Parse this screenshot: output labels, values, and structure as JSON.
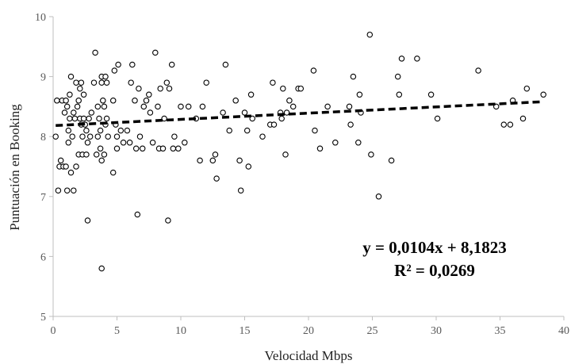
{
  "chart_data": {
    "type": "scatter",
    "title": "",
    "xlabel": "Velocidad Mbps",
    "ylabel": "Puntuación en Booking",
    "xlim": [
      0,
      40
    ],
    "ylim": [
      5,
      10
    ],
    "x_ticks": [
      "0",
      "5",
      "10",
      "15",
      "20",
      "25",
      "30",
      "35",
      "40"
    ],
    "y_ticks": [
      "5",
      "6",
      "7",
      "8",
      "9",
      "10"
    ],
    "grid": false,
    "marker": "open-circle",
    "trendline": {
      "type": "linear",
      "slope": 0.0104,
      "intercept": 8.1823,
      "style": "dashed",
      "equation_label": "y = 0,0104x + 8,1823",
      "r2_label": "R² = 0,0269"
    },
    "points": [
      [
        0.2,
        8.0
      ],
      [
        0.3,
        8.6
      ],
      [
        0.4,
        7.1
      ],
      [
        0.5,
        7.5
      ],
      [
        0.6,
        7.6
      ],
      [
        0.7,
        8.6
      ],
      [
        0.8,
        7.5
      ],
      [
        0.9,
        8.4
      ],
      [
        1.0,
        8.6
      ],
      [
        1.0,
        7.5
      ],
      [
        1.1,
        8.5
      ],
      [
        1.1,
        7.1
      ],
      [
        1.2,
        8.1
      ],
      [
        1.2,
        7.9
      ],
      [
        1.3,
        8.7
      ],
      [
        1.3,
        8.3
      ],
      [
        1.4,
        7.4
      ],
      [
        1.4,
        9.0
      ],
      [
        1.5,
        8.0
      ],
      [
        1.6,
        8.4
      ],
      [
        1.6,
        7.1
      ],
      [
        1.7,
        8.3
      ],
      [
        1.8,
        7.5
      ],
      [
        1.8,
        8.9
      ],
      [
        1.9,
        8.5
      ],
      [
        2.0,
        8.6
      ],
      [
        2.0,
        7.7
      ],
      [
        2.1,
        8.8
      ],
      [
        2.1,
        8.3
      ],
      [
        2.2,
        8.2
      ],
      [
        2.2,
        8.9
      ],
      [
        2.3,
        8.0
      ],
      [
        2.3,
        7.7
      ],
      [
        2.4,
        8.7
      ],
      [
        2.4,
        8.3
      ],
      [
        2.5,
        8.2
      ],
      [
        2.6,
        8.1
      ],
      [
        2.6,
        7.7
      ],
      [
        2.7,
        7.9
      ],
      [
        2.7,
        6.6
      ],
      [
        2.8,
        8.3
      ],
      [
        2.9,
        8.0
      ],
      [
        3.0,
        8.4
      ],
      [
        3.2,
        8.9
      ],
      [
        3.3,
        9.4
      ],
      [
        3.4,
        7.7
      ],
      [
        3.5,
        8.0
      ],
      [
        3.5,
        8.5
      ],
      [
        3.6,
        8.3
      ],
      [
        3.7,
        8.1
      ],
      [
        3.7,
        7.8
      ],
      [
        3.8,
        9.0
      ],
      [
        3.8,
        8.9
      ],
      [
        3.8,
        7.6
      ],
      [
        3.8,
        5.8
      ],
      [
        3.9,
        8.6
      ],
      [
        4.0,
        8.5
      ],
      [
        4.0,
        7.7
      ],
      [
        4.1,
        8.2
      ],
      [
        4.1,
        9.0
      ],
      [
        4.2,
        8.9
      ],
      [
        4.2,
        8.3
      ],
      [
        4.3,
        8.0
      ],
      [
        4.7,
        7.4
      ],
      [
        4.7,
        8.6
      ],
      [
        4.8,
        9.1
      ],
      [
        4.9,
        8.2
      ],
      [
        5.0,
        8.0
      ],
      [
        5.0,
        7.8
      ],
      [
        5.1,
        9.2
      ],
      [
        5.3,
        8.1
      ],
      [
        5.5,
        7.9
      ],
      [
        5.8,
        8.1
      ],
      [
        6.0,
        7.9
      ],
      [
        6.1,
        8.9
      ],
      [
        6.2,
        9.2
      ],
      [
        6.4,
        8.6
      ],
      [
        6.5,
        7.8
      ],
      [
        6.6,
        6.7
      ],
      [
        6.7,
        8.8
      ],
      [
        6.8,
        8.0
      ],
      [
        7.0,
        7.8
      ],
      [
        7.1,
        8.5
      ],
      [
        7.3,
        8.6
      ],
      [
        7.5,
        8.7
      ],
      [
        7.6,
        8.4
      ],
      [
        7.8,
        7.9
      ],
      [
        8.0,
        9.4
      ],
      [
        8.2,
        8.5
      ],
      [
        8.3,
        7.8
      ],
      [
        8.4,
        8.8
      ],
      [
        8.6,
        7.8
      ],
      [
        8.7,
        8.3
      ],
      [
        8.9,
        8.9
      ],
      [
        9.0,
        6.6
      ],
      [
        9.1,
        8.8
      ],
      [
        9.3,
        9.2
      ],
      [
        9.4,
        7.8
      ],
      [
        9.5,
        8.0
      ],
      [
        9.8,
        7.8
      ],
      [
        10.0,
        8.5
      ],
      [
        10.3,
        7.9
      ],
      [
        10.6,
        8.5
      ],
      [
        11.2,
        8.3
      ],
      [
        11.5,
        7.6
      ],
      [
        11.7,
        8.5
      ],
      [
        12.0,
        8.9
      ],
      [
        12.5,
        7.6
      ],
      [
        12.7,
        7.7
      ],
      [
        12.8,
        7.3
      ],
      [
        13.3,
        8.4
      ],
      [
        13.5,
        9.2
      ],
      [
        13.8,
        8.1
      ],
      [
        14.3,
        8.6
      ],
      [
        14.6,
        7.6
      ],
      [
        14.7,
        7.1
      ],
      [
        15.0,
        8.4
      ],
      [
        15.2,
        8.1
      ],
      [
        15.3,
        7.5
      ],
      [
        15.5,
        8.7
      ],
      [
        15.6,
        8.3
      ],
      [
        16.4,
        8.0
      ],
      [
        17.0,
        8.2
      ],
      [
        17.2,
        8.9
      ],
      [
        17.3,
        8.2
      ],
      [
        17.8,
        8.4
      ],
      [
        17.9,
        8.3
      ],
      [
        18.0,
        8.8
      ],
      [
        18.2,
        7.7
      ],
      [
        18.3,
        8.4
      ],
      [
        18.5,
        8.6
      ],
      [
        18.8,
        8.5
      ],
      [
        19.2,
        8.8
      ],
      [
        19.4,
        8.8
      ],
      [
        20.4,
        9.1
      ],
      [
        20.5,
        8.1
      ],
      [
        20.9,
        7.8
      ],
      [
        21.5,
        8.5
      ],
      [
        22.1,
        7.9
      ],
      [
        23.2,
        8.5
      ],
      [
        23.3,
        8.2
      ],
      [
        23.5,
        9.0
      ],
      [
        23.9,
        7.9
      ],
      [
        24.0,
        8.7
      ],
      [
        24.1,
        8.4
      ],
      [
        24.8,
        9.7
      ],
      [
        24.9,
        7.7
      ],
      [
        25.5,
        7.0
      ],
      [
        26.5,
        7.6
      ],
      [
        27.0,
        9.0
      ],
      [
        27.1,
        8.7
      ],
      [
        27.3,
        9.3
      ],
      [
        28.5,
        9.3
      ],
      [
        29.6,
        8.7
      ],
      [
        30.1,
        8.3
      ],
      [
        33.3,
        9.1
      ],
      [
        34.7,
        8.5
      ],
      [
        35.3,
        8.2
      ],
      [
        35.8,
        8.2
      ],
      [
        36.0,
        8.6
      ],
      [
        36.8,
        8.3
      ],
      [
        37.1,
        8.8
      ],
      [
        38.4,
        8.7
      ]
    ]
  }
}
